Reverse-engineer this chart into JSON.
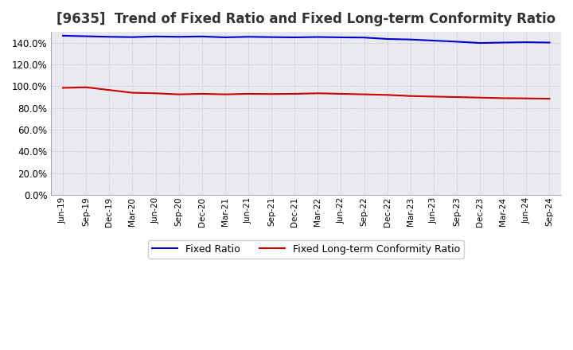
{
  "title": "[9635]  Trend of Fixed Ratio and Fixed Long-term Conformity Ratio",
  "title_fontsize": 12,
  "x_labels": [
    "Jun-19",
    "Sep-19",
    "Dec-19",
    "Mar-20",
    "Jun-20",
    "Sep-20",
    "Dec-20",
    "Mar-21",
    "Jun-21",
    "Sep-21",
    "Dec-21",
    "Mar-22",
    "Jun-22",
    "Sep-22",
    "Dec-22",
    "Mar-23",
    "Jun-23",
    "Sep-23",
    "Dec-23",
    "Mar-24",
    "Jun-24",
    "Sep-24"
  ],
  "fixed_ratio": [
    146.5,
    146.0,
    145.5,
    145.2,
    145.8,
    145.5,
    145.8,
    145.0,
    145.5,
    145.2,
    145.0,
    145.3,
    145.0,
    144.8,
    143.5,
    143.0,
    142.0,
    141.0,
    139.8,
    140.2,
    140.5,
    140.2
  ],
  "fixed_lt_ratio": [
    98.5,
    99.0,
    96.5,
    94.0,
    93.5,
    92.5,
    93.0,
    92.5,
    93.0,
    92.8,
    93.0,
    93.5,
    93.0,
    92.5,
    92.0,
    91.0,
    90.5,
    90.0,
    89.5,
    89.0,
    88.8,
    88.5
  ],
  "fixed_ratio_color": "#0000cc",
  "fixed_lt_ratio_color": "#cc0000",
  "ylim": [
    0,
    150
  ],
  "yticks": [
    0,
    20,
    40,
    60,
    80,
    100,
    120,
    140
  ],
  "background_color": "#ffffff",
  "plot_bg_color": "#e8eaf0",
  "grid_color": "#aaaaaa",
  "legend_fixed_ratio": "Fixed Ratio",
  "legend_fixed_lt_ratio": "Fixed Long-term Conformity Ratio"
}
